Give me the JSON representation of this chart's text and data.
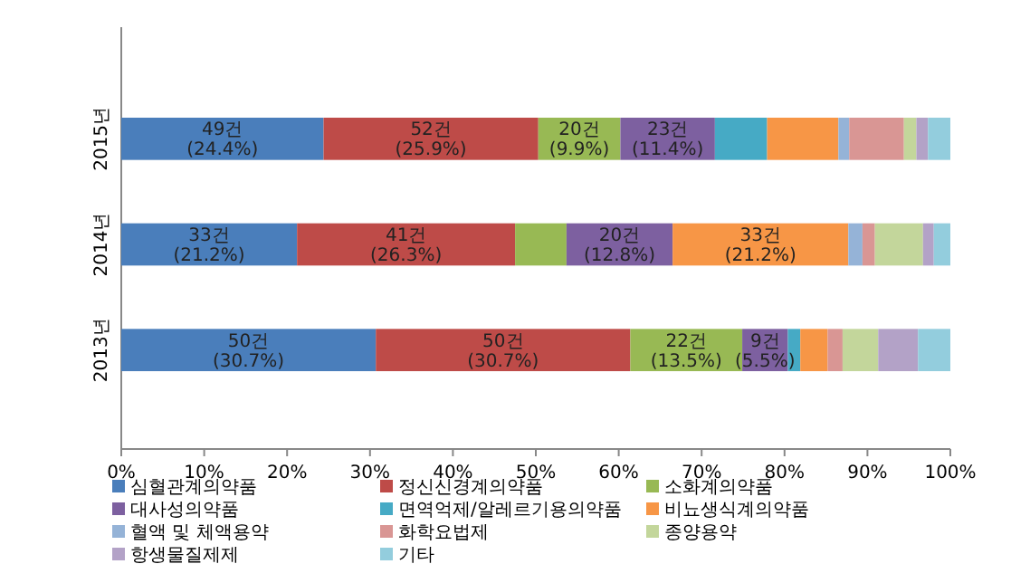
{
  "chart_data": {
    "type": "bar",
    "orientation": "horizontal",
    "stacked": true,
    "categories": [
      "2015년",
      "2014년",
      "2013년"
    ],
    "xlim": [
      0,
      100
    ],
    "xticks": [
      {
        "value": 0,
        "label": "0%"
      },
      {
        "value": 10,
        "label": "10%"
      },
      {
        "value": 20,
        "label": "20%"
      },
      {
        "value": 30,
        "label": "30%"
      },
      {
        "value": 40,
        "label": "40%"
      },
      {
        "value": 50,
        "label": "50%"
      },
      {
        "value": 60,
        "label": "60%"
      },
      {
        "value": 70,
        "label": "70%"
      },
      {
        "value": 80,
        "label": "80%"
      },
      {
        "value": 90,
        "label": "90%"
      },
      {
        "value": 100,
        "label": "100%"
      }
    ],
    "grid": false,
    "legend": "bottom",
    "series": [
      {
        "name": "심혈관계의약품",
        "color": "#4a7ebb",
        "values": [
          24.4,
          21.2,
          30.7
        ],
        "value_labels": [
          "49건\n(24.4%)",
          "33건\n(21.2%)",
          "50건\n(30.7%)"
        ]
      },
      {
        "name": "정신신경계의약품",
        "color": "#be4b48",
        "values": [
          25.9,
          26.3,
          30.7
        ],
        "value_labels": [
          "52건\n(25.9%)",
          "41건\n(26.3%)",
          "50건\n(30.7%)"
        ]
      },
      {
        "name": "소화계의약품",
        "color": "#98b954",
        "values": [
          9.9,
          6.2,
          13.5
        ],
        "value_labels": [
          "20건\n(9.9%)",
          null,
          "22건\n(13.5%)"
        ]
      },
      {
        "name": "대사성의약품",
        "color": "#7d60a0",
        "values": [
          11.4,
          12.8,
          5.5
        ],
        "value_labels": [
          "23건\n(11.4%)",
          "20건\n(12.8%)",
          "9건\n(5.5%)"
        ]
      },
      {
        "name": "면역억제/알레르기용의약품",
        "color": "#46aac5",
        "values": [
          6.3,
          0,
          1.5
        ]
      },
      {
        "name": "비뇨생식계의약품",
        "color": "#f79646",
        "values": [
          8.6,
          21.2,
          3.3
        ],
        "value_labels": [
          null,
          "33건\n(21.2%)",
          null
        ]
      },
      {
        "name": "혈액 및 체액용약",
        "color": "#95b3d7",
        "values": [
          1.3,
          1.7,
          0
        ]
      },
      {
        "name": "화학요법제",
        "color": "#d99694",
        "values": [
          6.6,
          1.5,
          1.8
        ]
      },
      {
        "name": "종양용약",
        "color": "#c3d69b",
        "values": [
          1.5,
          5.8,
          4.3
        ]
      },
      {
        "name": "항생물질제제",
        "color": "#b3a2c7",
        "values": [
          1.4,
          1.3,
          4.8
        ]
      },
      {
        "name": "기타",
        "color": "#93cddd",
        "values": [
          2.7,
          2.0,
          3.9
        ]
      }
    ]
  }
}
